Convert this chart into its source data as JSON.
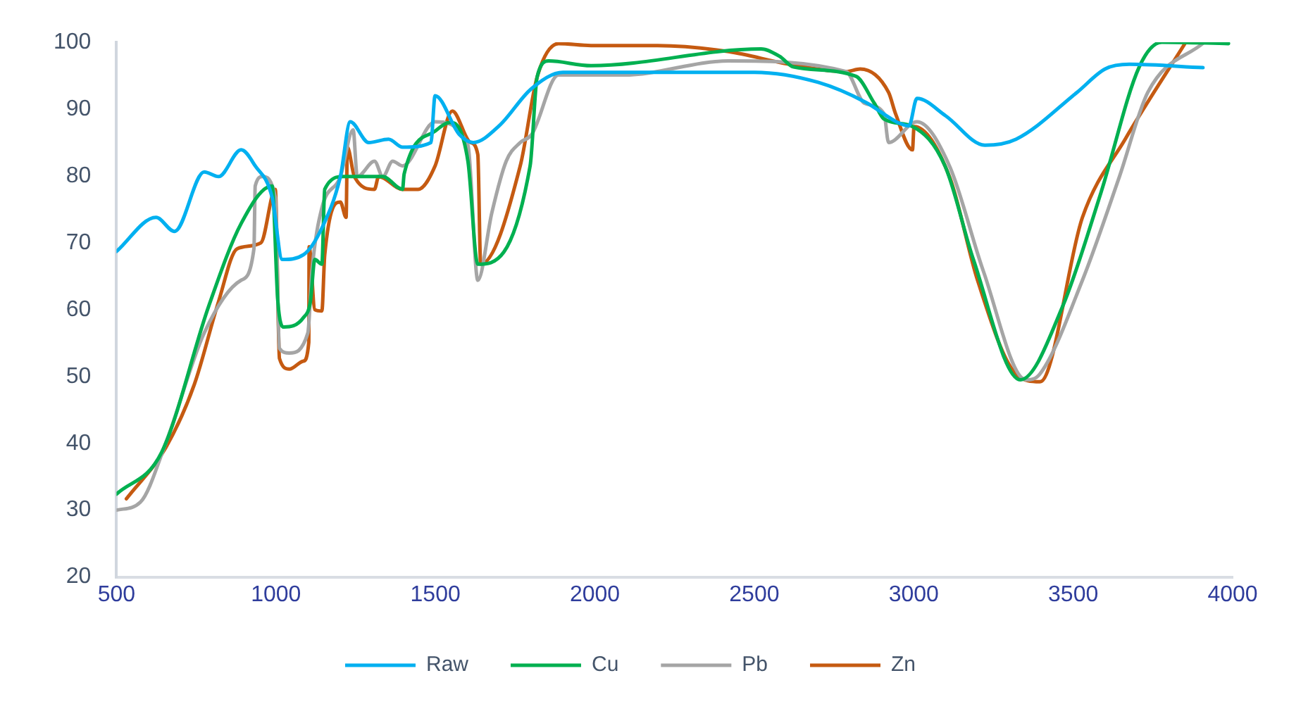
{
  "chart_data": {
    "type": "line",
    "xlim": [
      500,
      4000
    ],
    "xticks": [
      500,
      1000,
      1500,
      2000,
      2500,
      3000,
      3500,
      4000
    ],
    "ylim": [
      20,
      100
    ],
    "yticks": [
      20,
      30,
      40,
      50,
      60,
      70,
      80,
      90,
      100
    ],
    "grid": false,
    "legend": "bottom",
    "marker": "none",
    "line_style": "solid",
    "series": [
      {
        "name": "Raw",
        "color": "#00b0f0",
        "x": [
          500,
          624,
          682,
          775,
          820,
          891,
          935,
          988,
          1020,
          1086,
          1144,
          1202,
          1233,
          1291,
          1353,
          1397,
          1486,
          1499,
          1575,
          1619,
          1700,
          1800,
          1900,
          2500,
          2700,
          2850,
          2950,
          2985,
          3010,
          3100,
          3223,
          3321,
          3512,
          3600,
          3676,
          3907
        ],
        "values": [
          68.7,
          73.8,
          71.7,
          80.6,
          79.9,
          83.9,
          81.5,
          76.8,
          67.5,
          68.2,
          72.2,
          79.9,
          88.1,
          85,
          85.5,
          84.3,
          85,
          92,
          86.2,
          85,
          87.5,
          93,
          95.5,
          95.5,
          94,
          91,
          88,
          87.5,
          91.6,
          89,
          84.6,
          85.5,
          92.5,
          96,
          96.7,
          96.2
        ]
      },
      {
        "name": "Cu",
        "color": "#00b050",
        "x": [
          500,
          642,
          789,
          891,
          988,
          1006,
          1024,
          1086,
          1108,
          1122,
          1144,
          1153,
          1211,
          1246,
          1335,
          1397,
          1402,
          1499,
          1544,
          1602,
          1633,
          1797,
          1819,
          1855,
          1988,
          2521,
          2579,
          2623,
          2819,
          2876,
          2907,
          2996,
          3098,
          3187,
          3334,
          3467,
          3587,
          3707,
          3778,
          3987
        ],
        "values": [
          32.4,
          38.7,
          60.5,
          72.9,
          78.5,
          61.2,
          57.4,
          58.8,
          61.2,
          67.5,
          66.8,
          78,
          79.9,
          79.9,
          79.9,
          78,
          80.3,
          86.7,
          88,
          82.2,
          66.8,
          81.5,
          94.8,
          97.2,
          96.5,
          99,
          97.9,
          96.3,
          94.9,
          90.9,
          88.5,
          87.4,
          81.5,
          67.5,
          49.5,
          60.5,
          77.5,
          96.3,
          100,
          99.8
        ]
      },
      {
        "name": "Pb",
        "color": "#a5a5a5",
        "x": [
          500,
          575,
          655,
          775,
          891,
          931,
          935,
          958,
          998,
          1011,
          1042,
          1100,
          1113,
          1144,
          1202,
          1242,
          1255,
          1309,
          1335,
          1366,
          1397,
          1499,
          1602,
          1633,
          1677,
          1722,
          1766,
          1802,
          1886,
          2090,
          2419,
          2788,
          2845,
          2907,
          2921,
          3010,
          3112,
          3218,
          3352,
          3396,
          3529,
          3645,
          3734,
          3911
        ],
        "values": [
          30,
          31.2,
          40.1,
          56.5,
          64.4,
          69.1,
          78.5,
          79.9,
          76.8,
          54.2,
          53.5,
          56.5,
          65.8,
          75.2,
          79.9,
          86.9,
          79.9,
          82.2,
          79.9,
          82.2,
          81.5,
          88.1,
          84.6,
          64.4,
          74.5,
          82.2,
          85,
          86.2,
          95.1,
          95.1,
          97.2,
          95.6,
          90.9,
          89.3,
          85,
          88.1,
          81.5,
          65.8,
          49.5,
          50.4,
          64.4,
          79.9,
          92.5,
          100
        ]
      },
      {
        "name": "Zn",
        "color": "#c55a11",
        "x": [
          531,
          655,
          744,
          820,
          878,
          953,
          998,
          1011,
          1042,
          1086,
          1103,
          1104,
          1122,
          1144,
          1153,
          1202,
          1220,
          1224,
          1246,
          1309,
          1322,
          1397,
          1446,
          1499,
          1553,
          1610,
          1633,
          1642,
          1766,
          1819,
          1886,
          1988,
          2197,
          2419,
          2610,
          2788,
          2832,
          2921,
          2943,
          2996,
          3001,
          3112,
          3200,
          3320,
          3396,
          3529,
          3663,
          3853
        ],
        "values": [
          31.7,
          39.4,
          48.8,
          61.2,
          69.1,
          70,
          78,
          52.7,
          51.1,
          52.3,
          55.1,
          69.4,
          60,
          59.8,
          68.2,
          76.1,
          73.8,
          84.3,
          79.9,
          78,
          79.9,
          78,
          78,
          81.5,
          89.7,
          85,
          83.2,
          66.8,
          81.5,
          94.8,
          99.8,
          99.5,
          99.5,
          98.6,
          96.7,
          95.6,
          96,
          92.5,
          89.3,
          83.9,
          87.4,
          79.9,
          64.4,
          50.4,
          49.2,
          73.8,
          85.5,
          100
        ]
      }
    ]
  }
}
